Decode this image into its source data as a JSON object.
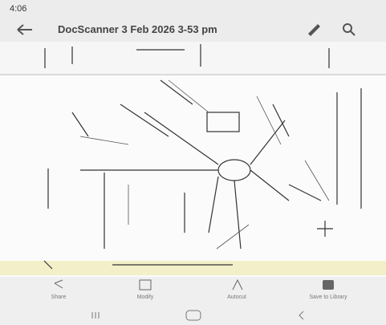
{
  "status": {
    "time": "4:06"
  },
  "header": {
    "title": "DocScanner 3 Feb 2026 3-53 pm"
  },
  "toolbar": [
    {
      "label": "Share"
    },
    {
      "label": "Modify"
    },
    {
      "label": "Autocut"
    },
    {
      "label": "Save to Library"
    }
  ]
}
